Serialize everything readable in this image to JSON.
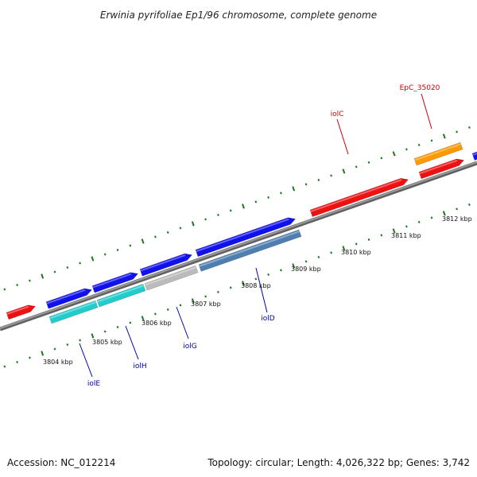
{
  "title": "Erwinia pyrifoliae Ep1/96 chromosome, complete genome",
  "footer": {
    "accession": "Accession: NC_012214",
    "summary": "Topology: circular; Length: 4,026,322 bp; Genes: 3,742"
  },
  "ticks": [
    "3804 kbp",
    "3805 kbp",
    "3806 kbp",
    "3807 kbp",
    "3808 kbp",
    "3809 kbp",
    "3810 kbp",
    "3811 kbp",
    "3812 kbp"
  ],
  "gene_labels": [
    {
      "text": "iolC",
      "color": "#cc0000"
    },
    {
      "text": "EpC_35020",
      "color": "#cc0000"
    },
    {
      "text": "iolE",
      "color": "#0000aa"
    },
    {
      "text": "iolH",
      "color": "#0000aa"
    },
    {
      "text": "iolG",
      "color": "#0000aa"
    },
    {
      "text": "iolD",
      "color": "#0000aa"
    }
  ],
  "colors": {
    "backbone": "#808080",
    "ticks": "#1a7a1a",
    "red": "#ee1111",
    "blue": "#1111ee",
    "cyan": "#22cccc",
    "grey": "#bbbbbb",
    "steel": "#4f7fb0",
    "orange": "#ff9900"
  }
}
